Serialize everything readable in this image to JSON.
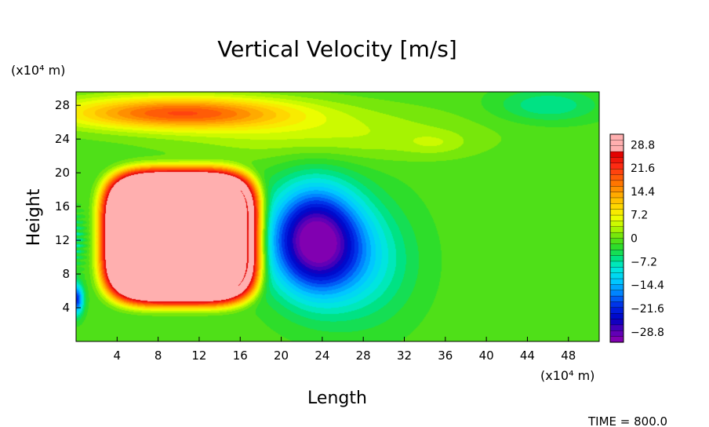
{
  "chart_data": {
    "type": "heatmap",
    "title": "Vertical Velocity [m/s]",
    "xlabel": "Length",
    "ylabel": "Height",
    "x_unit": "(x10⁴ m)",
    "y_unit": "(x10⁴ m)",
    "xlim": [
      0,
      51
    ],
    "ylim": [
      0,
      29.6
    ],
    "x_ticks": [
      "4",
      "8",
      "12",
      "16",
      "20",
      "24",
      "28",
      "32",
      "36",
      "40",
      "44",
      "48"
    ],
    "y_ticks": [
      "4",
      "8",
      "12",
      "16",
      "20",
      "24",
      "28"
    ],
    "colorbar": {
      "range": [
        -32,
        32
      ],
      "labels": [
        "28.8",
        "21.6",
        "14.4",
        "7.2",
        "0",
        "−7.2",
        "−14.4",
        "−21.6",
        "−28.8"
      ],
      "label_values": [
        28.8,
        21.6,
        14.4,
        7.2,
        0,
        -7.2,
        -14.4,
        -21.6,
        -28.8
      ]
    },
    "features": [
      {
        "kind": "updraft-core",
        "center": [
          10,
          12.5
        ],
        "peak": 32
      },
      {
        "kind": "downdraft-core",
        "center": [
          23,
          12
        ],
        "peak": -31
      },
      {
        "kind": "upper-band",
        "center": [
          12,
          27
        ],
        "peak": 22
      },
      {
        "kind": "left-edge-downdraft",
        "center": [
          0,
          5
        ],
        "peak": -22
      }
    ],
    "grid": false,
    "legend": "colorbar-right"
  },
  "footer": {
    "time": "TIME = 800.0"
  }
}
